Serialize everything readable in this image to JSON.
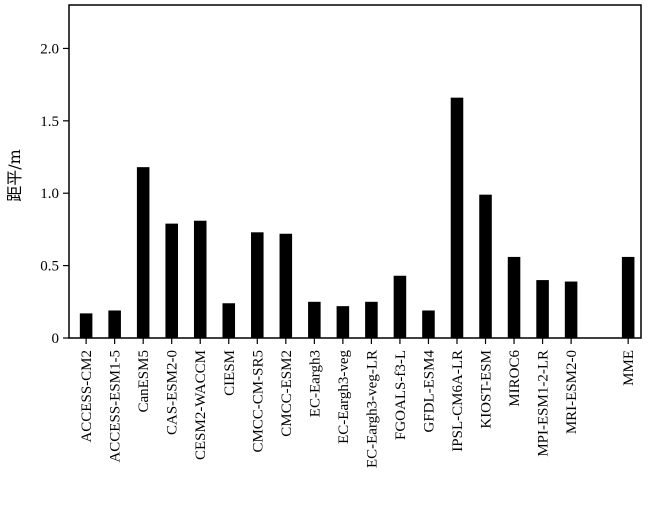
{
  "chart_data": {
    "type": "bar",
    "title": "",
    "xlabel": "",
    "ylabel": "距平/m",
    "ylim": [
      0,
      2.3
    ],
    "yticks": [
      {
        "value": 0,
        "label": "0"
      },
      {
        "value": 0.5,
        "label": "0.5"
      },
      {
        "value": 1.0,
        "label": "1.0"
      },
      {
        "value": 1.5,
        "label": "1.5"
      },
      {
        "value": 2.0,
        "label": "2.0"
      }
    ],
    "grid": false,
    "bar_color": "#000000",
    "categories": [
      "ACCESS-CM2",
      "ACCESS-ESM1-5",
      "CanESM5",
      "CAS-ESM2-0",
      "CESM2-WACCM",
      "CIESM",
      "CMCC-CM-SR5",
      "CMCC-ESM2",
      "EC-Eargh3",
      "EC-Eargh3-veg",
      "EC-Eargh3-veg-LR",
      "FGOALS-f3-L",
      "GFDL-ESM4",
      "IPSL-CM6A-LR",
      "KIOST-ESM",
      "MIROC6",
      "MPI-ESM1-2-LR",
      "MRI-ESM2-0",
      "MME"
    ],
    "values": [
      0.17,
      0.19,
      1.18,
      0.79,
      0.81,
      0.24,
      0.73,
      0.72,
      0.25,
      0.22,
      0.25,
      0.43,
      0.19,
      1.66,
      0.99,
      0.56,
      0.4,
      0.39,
      0.56
    ]
  }
}
